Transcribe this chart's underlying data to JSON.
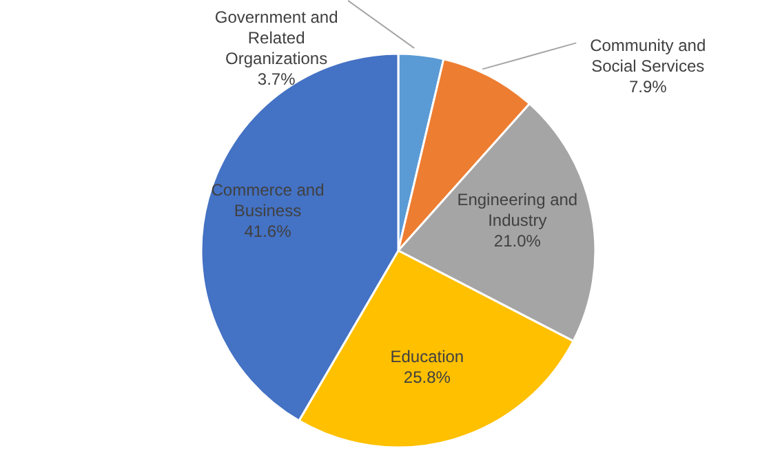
{
  "chart_data": {
    "type": "pie",
    "categories": [
      "Government and Related Organizations",
      "Community and Social Services",
      "Engineering and Industry",
      "Education",
      "Commerce and Business"
    ],
    "values": [
      3.7,
      7.9,
      21.0,
      25.8,
      41.6
    ],
    "value_labels": [
      "3.7%",
      "7.9%",
      "21.0%",
      "25.8%",
      "41.6%"
    ],
    "colors": [
      "#5b9bd5",
      "#ed7d31",
      "#a5a5a5",
      "#ffc000",
      "#4472c4"
    ],
    "legend": false
  }
}
